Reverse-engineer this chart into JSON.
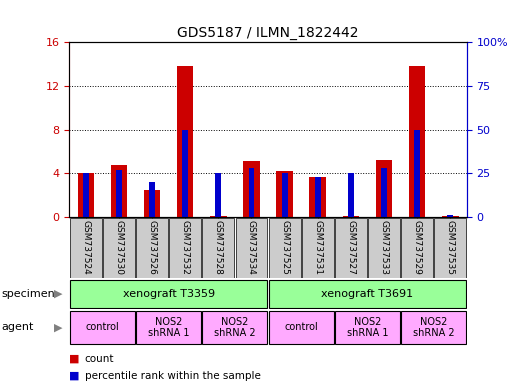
{
  "title": "GDS5187 / ILMN_1822442",
  "samples": [
    "GSM737524",
    "GSM737530",
    "GSM737526",
    "GSM737532",
    "GSM737528",
    "GSM737534",
    "GSM737525",
    "GSM737531",
    "GSM737527",
    "GSM737533",
    "GSM737529",
    "GSM737535"
  ],
  "counts": [
    4.0,
    4.8,
    2.5,
    13.8,
    0.05,
    5.1,
    4.2,
    3.7,
    0.05,
    5.2,
    13.8,
    0.05
  ],
  "percentiles": [
    25,
    27,
    20,
    50,
    25,
    28,
    25,
    23,
    25,
    28,
    50,
    1
  ],
  "ylim_left": [
    0,
    16
  ],
  "ylim_right": [
    0,
    100
  ],
  "yticks_left": [
    0,
    4,
    8,
    12,
    16
  ],
  "yticks_right": [
    0,
    25,
    50,
    75,
    100
  ],
  "ytick_labels_left": [
    "0",
    "4",
    "8",
    "12",
    "16"
  ],
  "ytick_labels_right": [
    "0",
    "25",
    "50",
    "75",
    "100%"
  ],
  "bar_color_red": "#cc0000",
  "bar_color_blue": "#0000cc",
  "bar_width": 0.5,
  "specimen_labels": [
    "xenograft T3359",
    "xenograft T3691"
  ],
  "specimen_spans": [
    [
      0,
      5
    ],
    [
      6,
      11
    ]
  ],
  "specimen_color": "#99ff99",
  "agent_groups": [
    {
      "label": "control",
      "span": [
        0,
        1
      ],
      "color": "#ffaaff"
    },
    {
      "label": "NOS2\nshRNA 1",
      "span": [
        2,
        3
      ],
      "color": "#ffaaff"
    },
    {
      "label": "NOS2\nshRNA 2",
      "span": [
        4,
        5
      ],
      "color": "#ffaaff"
    },
    {
      "label": "control",
      "span": [
        6,
        7
      ],
      "color": "#ffaaff"
    },
    {
      "label": "NOS2\nshRNA 1",
      "span": [
        8,
        9
      ],
      "color": "#ffaaff"
    },
    {
      "label": "NOS2\nshRNA 2",
      "span": [
        10,
        11
      ],
      "color": "#ffaaff"
    }
  ],
  "tick_bg_color": "#cccccc",
  "legend_red_label": "count",
  "legend_blue_label": "percentile rank within the sample",
  "grid_color": "black",
  "specimen_arrow": "▶",
  "agent_arrow": "▶"
}
